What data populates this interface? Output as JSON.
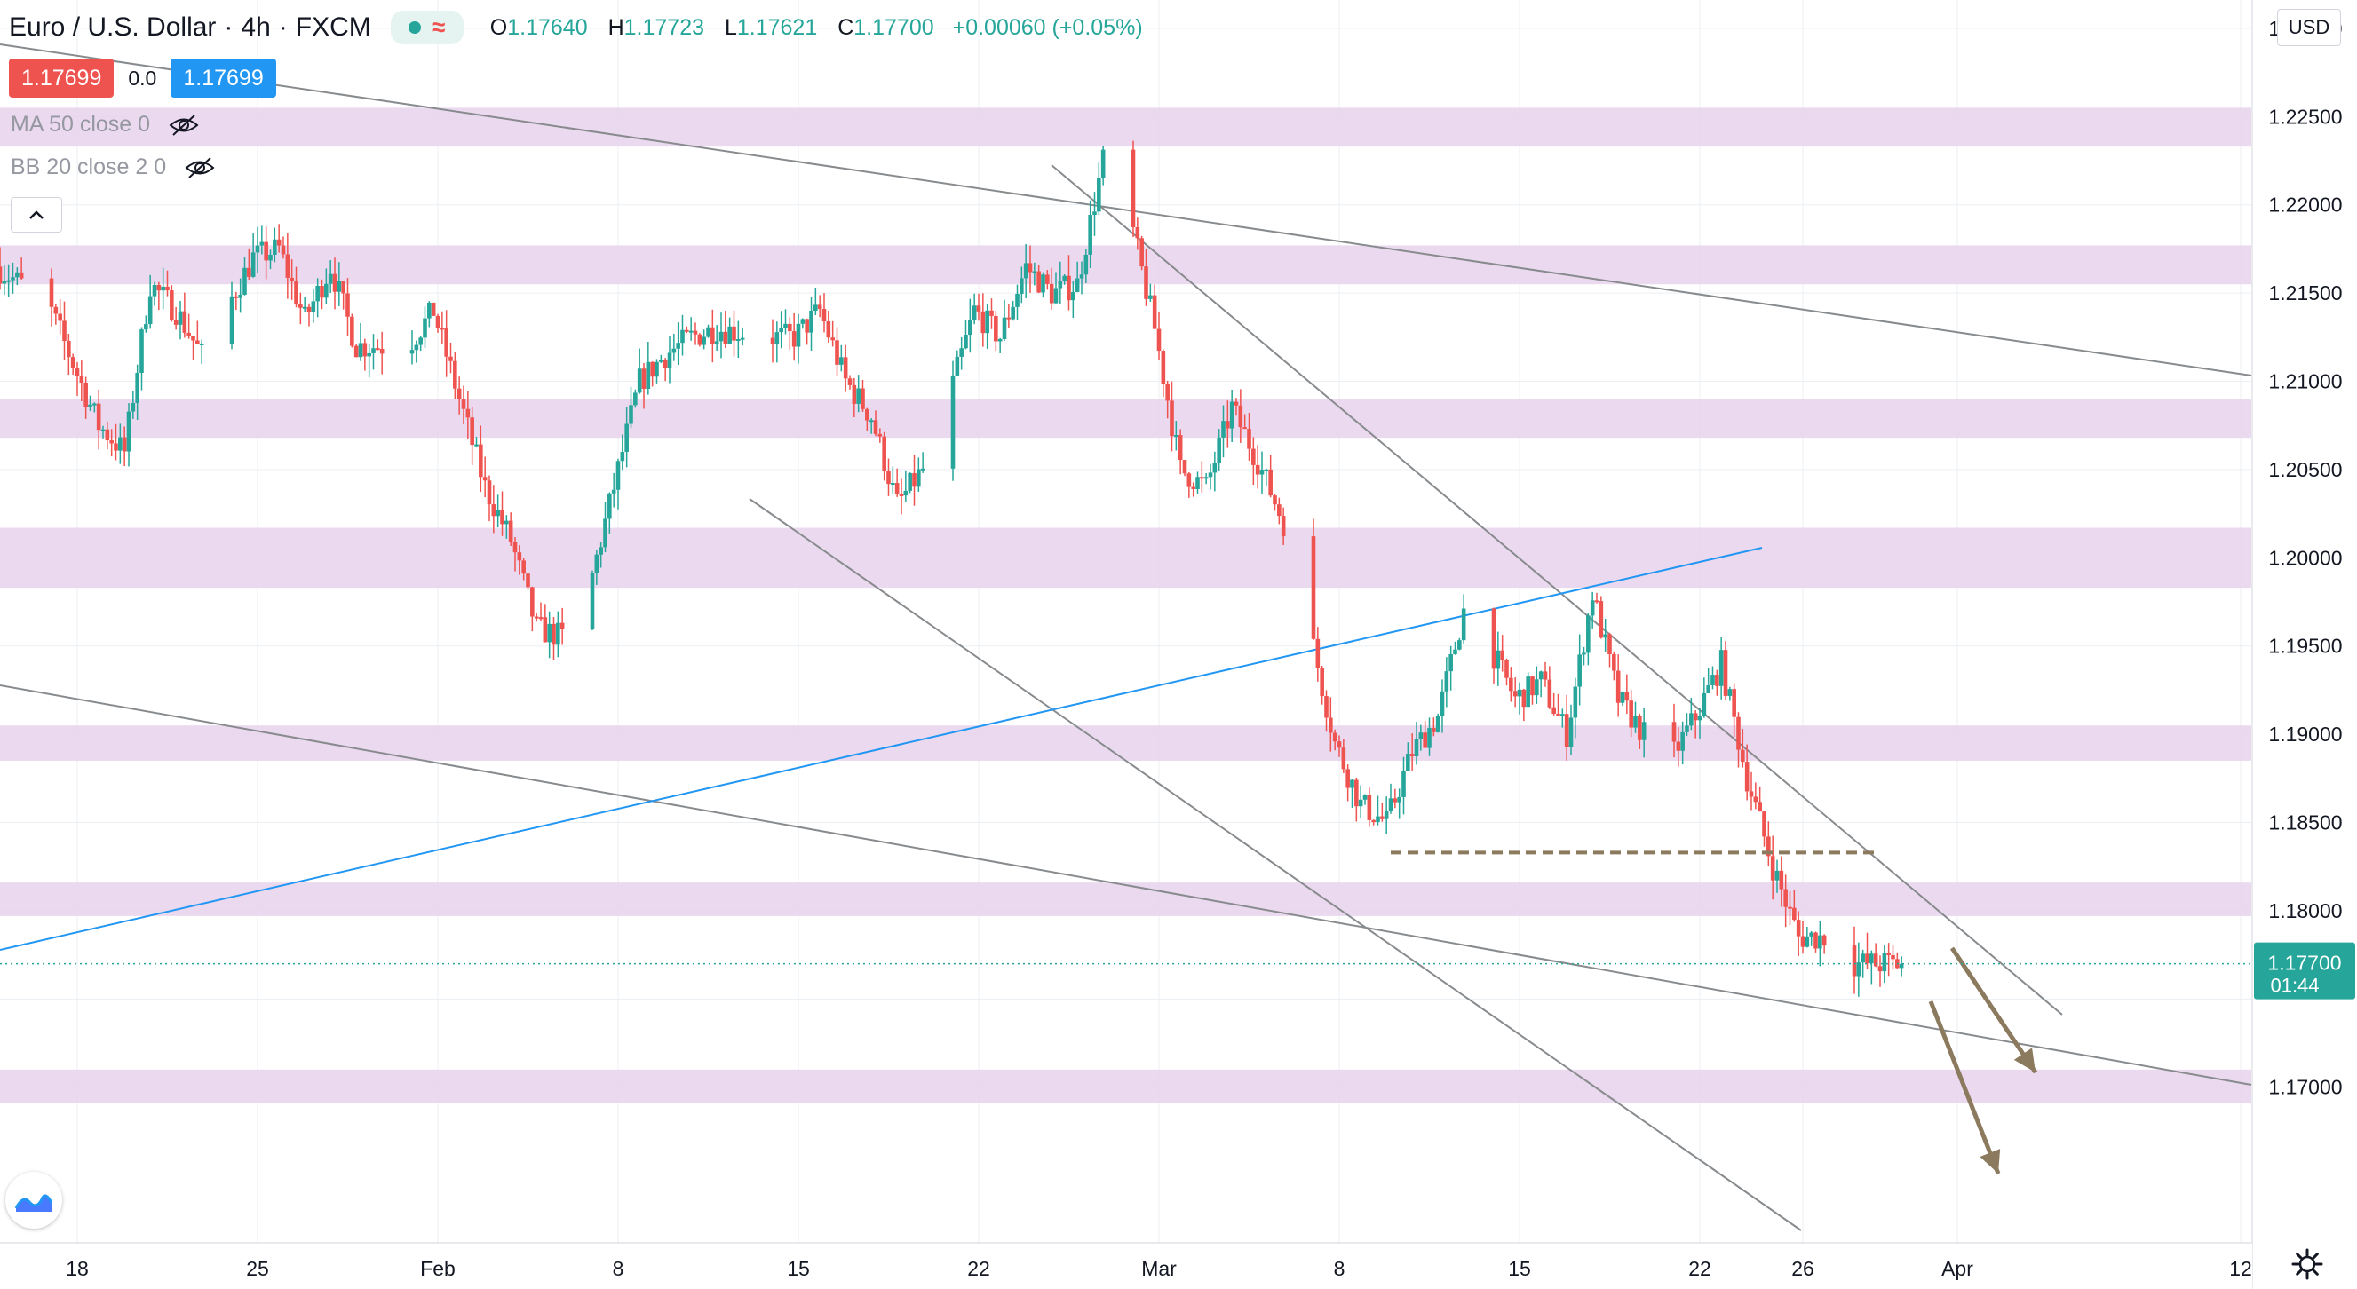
{
  "header": {
    "symbol": "Euro / U.S. Dollar",
    "interval": "4h",
    "exchange": "FXCM",
    "ohlc": {
      "o_label": "O",
      "o_value": "1.17640",
      "h_label": "H",
      "h_value": "1.17723",
      "l_label": "L",
      "l_value": "1.17621",
      "c_label": "C",
      "c_value": "1.17700",
      "change": "+0.00060 (+0.05%)"
    }
  },
  "trade": {
    "sell_price": "1.17699",
    "spread": "0.0",
    "buy_price": "1.17699"
  },
  "indicators": [
    {
      "label": "MA 50 close 0"
    },
    {
      "label": "BB 20 close 2 0"
    }
  ],
  "currency_label": "USD",
  "colors": {
    "up": "#26a69a",
    "down": "#ef5350",
    "zone": "#e8d2ec",
    "trendline": "#888b8e",
    "blue_line": "#2196f3",
    "arrow": "#8c7a5e"
  },
  "chart_data": {
    "type": "candlestick",
    "title": "Euro / U.S. Dollar · 4h · FXCM",
    "ylim": [
      1.1622,
      1.2306
    ],
    "y_ticks": [
      1.23,
      1.225,
      1.22,
      1.215,
      1.21,
      1.205,
      1.2,
      1.195,
      1.19,
      1.185,
      1.18,
      1.175,
      1.17
    ],
    "y_tick_labels": [
      "1.23000",
      "1.22500",
      "1.22000",
      "1.21500",
      "1.21000",
      "1.20500",
      "1.20000",
      "1.19500",
      "1.19000",
      "1.18500",
      "1.18000",
      "",
      "1.17000"
    ],
    "x_ticks": [
      {
        "label": "18",
        "date": "2021-01-18"
      },
      {
        "label": "25",
        "date": "2021-01-25"
      },
      {
        "label": "Feb",
        "date": "2021-02-01"
      },
      {
        "label": "8",
        "date": "2021-02-08"
      },
      {
        "label": "15",
        "date": "2021-02-15"
      },
      {
        "label": "22",
        "date": "2021-02-22"
      },
      {
        "label": "Mar",
        "date": "2021-03-01"
      },
      {
        "label": "8",
        "date": "2021-03-08"
      },
      {
        "label": "15",
        "date": "2021-03-15"
      },
      {
        "label": "22",
        "date": "2021-03-22"
      },
      {
        "label": "26",
        "date": "2021-03-26"
      },
      {
        "label": "Apr",
        "date": "2021-04-01"
      },
      {
        "label": "12",
        "date": "2021-04-12"
      }
    ],
    "last_price": {
      "value": 1.177,
      "label": "1.17700",
      "countdown": "01:44"
    },
    "zones": [
      [
        1.2233,
        1.2255
      ],
      [
        1.2155,
        1.2177
      ],
      [
        1.2068,
        1.209
      ],
      [
        1.1983,
        1.2017
      ],
      [
        1.1885,
        1.1905
      ],
      [
        1.1797,
        1.1816
      ],
      [
        1.1691,
        1.171
      ]
    ],
    "resistance_line": {
      "price": 1.1833,
      "from": "2021-03-10",
      "to": "2021-03-29"
    },
    "close_path": [
      [
        "2021-01-15",
        1.2165
      ],
      [
        "2021-01-17",
        1.2145
      ],
      [
        "2021-01-19",
        1.2075
      ],
      [
        "2021-01-20",
        1.206
      ],
      [
        "2021-01-21",
        1.2155
      ],
      [
        "2021-01-22",
        1.214
      ],
      [
        "2021-01-23",
        1.2115
      ],
      [
        "2021-01-25",
        1.217
      ],
      [
        "2021-01-26",
        1.2175
      ],
      [
        "2021-01-27",
        1.2135
      ],
      [
        "2021-01-28",
        1.2165
      ],
      [
        "2021-01-29",
        1.212
      ],
      [
        "2021-01-31",
        1.212
      ],
      [
        "2021-02-01",
        1.214
      ],
      [
        "2021-02-02",
        1.209
      ],
      [
        "2021-02-03",
        1.204
      ],
      [
        "2021-02-04",
        1.201
      ],
      [
        "2021-02-05",
        1.196
      ],
      [
        "2021-02-06",
        1.1955
      ],
      [
        "2021-02-07",
        1.198
      ],
      [
        "2021-02-08",
        1.204
      ],
      [
        "2021-02-09",
        1.21
      ],
      [
        "2021-02-10",
        1.2115
      ],
      [
        "2021-02-11",
        1.2125
      ],
      [
        "2021-02-12",
        1.213
      ],
      [
        "2021-02-14",
        1.2125
      ],
      [
        "2021-02-15",
        1.2125
      ],
      [
        "2021-02-16",
        1.214
      ],
      [
        "2021-02-17",
        1.21
      ],
      [
        "2021-02-18",
        1.208
      ],
      [
        "2021-02-19",
        1.203
      ],
      [
        "2021-02-20",
        1.205
      ],
      [
        "2021-02-21",
        1.209
      ],
      [
        "2021-02-22",
        1.214
      ],
      [
        "2021-02-23",
        1.2125
      ],
      [
        "2021-02-24",
        1.2165
      ],
      [
        "2021-02-25",
        1.215
      ],
      [
        "2021-02-26",
        1.2155
      ],
      [
        "2021-02-27",
        1.2225
      ],
      [
        "2021-02-28",
        1.2195
      ],
      [
        "2021-03-01",
        1.213
      ],
      [
        "2021-03-02",
        1.205
      ],
      [
        "2021-03-03",
        1.204
      ],
      [
        "2021-03-04",
        1.2085
      ],
      [
        "2021-03-05",
        1.2055
      ],
      [
        "2021-03-06",
        1.202
      ],
      [
        "2021-03-07",
        1.196
      ],
      [
        "2021-03-08",
        1.1895
      ],
      [
        "2021-03-09",
        1.186
      ],
      [
        "2021-03-10",
        1.185
      ],
      [
        "2021-03-11",
        1.189
      ],
      [
        "2021-03-12",
        1.191
      ],
      [
        "2021-03-13",
        1.197
      ],
      [
        "2021-03-14",
        1.195
      ],
      [
        "2021-03-15",
        1.192
      ],
      [
        "2021-03-16",
        1.193
      ],
      [
        "2021-03-17",
        1.19
      ],
      [
        "2021-03-18",
        1.198
      ],
      [
        "2021-03-19",
        1.192
      ],
      [
        "2021-03-20",
        1.19
      ],
      [
        "2021-03-21",
        1.1885
      ],
      [
        "2021-03-22",
        1.191
      ],
      [
        "2021-03-23",
        1.194
      ],
      [
        "2021-03-24",
        1.1875
      ],
      [
        "2021-03-25",
        1.1825
      ],
      [
        "2021-03-26",
        1.1785
      ],
      [
        "2021-03-27",
        1.1785
      ],
      [
        "2021-03-28",
        1.177
      ],
      [
        "2021-03-29",
        1.177
      ]
    ]
  }
}
